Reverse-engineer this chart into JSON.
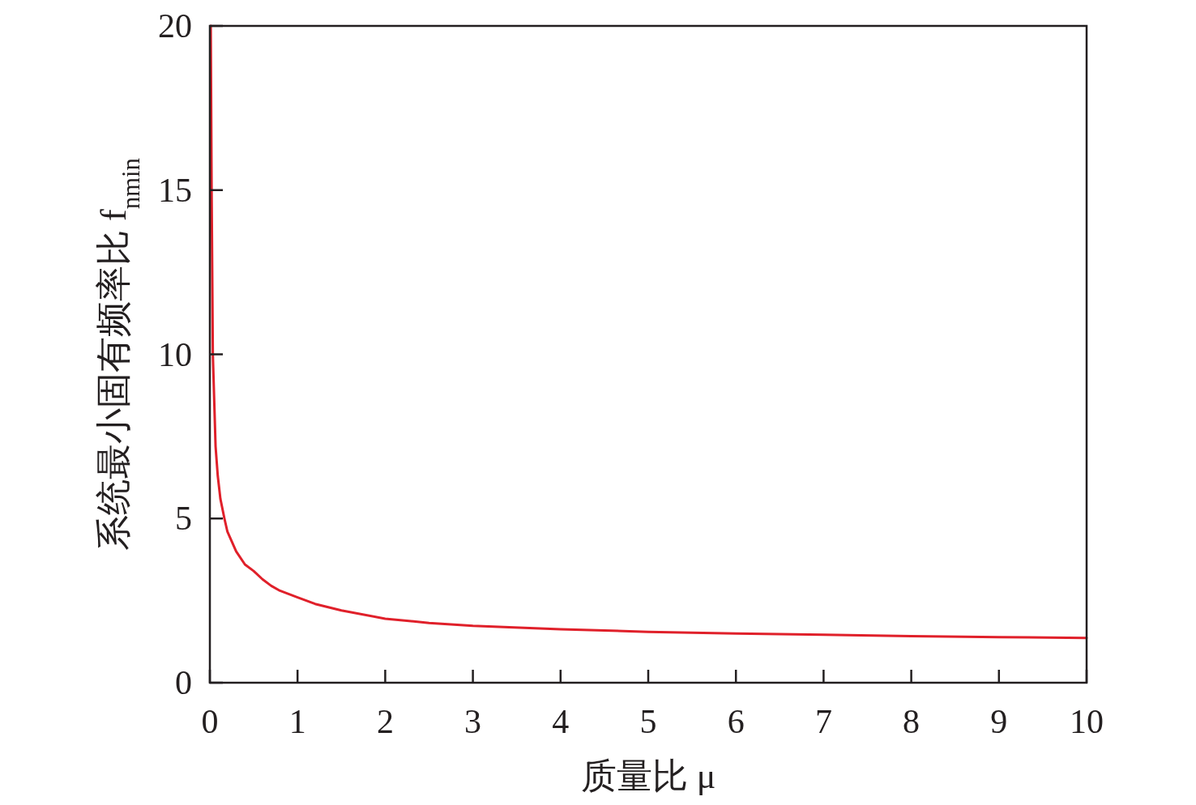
{
  "chart_data": {
    "type": "line",
    "xlabel": "质量比 μ",
    "ylabel": "系统最小固有频率比 f$_{nmin}$",
    "xlim": [
      0,
      10
    ],
    "ylim": [
      0,
      20
    ],
    "xticks": [
      0,
      1,
      2,
      3,
      4,
      5,
      6,
      7,
      8,
      9,
      10
    ],
    "yticks": [
      0,
      5,
      10,
      15,
      20
    ],
    "grid": false,
    "series": [
      {
        "color": "#e0202a",
        "x": [
          0.01,
          0.02,
          0.034,
          0.065,
          0.09,
          0.12,
          0.166,
          0.2,
          0.25,
          0.3,
          0.4,
          0.5,
          0.6,
          0.7,
          0.8,
          1,
          1.2,
          1.5,
          2,
          2.5,
          3,
          4,
          5,
          6,
          7,
          8,
          9,
          10
        ],
        "values": [
          20,
          15,
          10,
          7.2,
          6.3,
          5.6,
          5.0,
          4.6,
          4.3,
          4.0,
          3.6,
          3.4,
          3.15,
          2.95,
          2.8,
          2.6,
          2.4,
          2.2,
          1.95,
          1.82,
          1.73,
          1.63,
          1.55,
          1.5,
          1.46,
          1.42,
          1.39,
          1.36
        ]
      }
    ]
  }
}
